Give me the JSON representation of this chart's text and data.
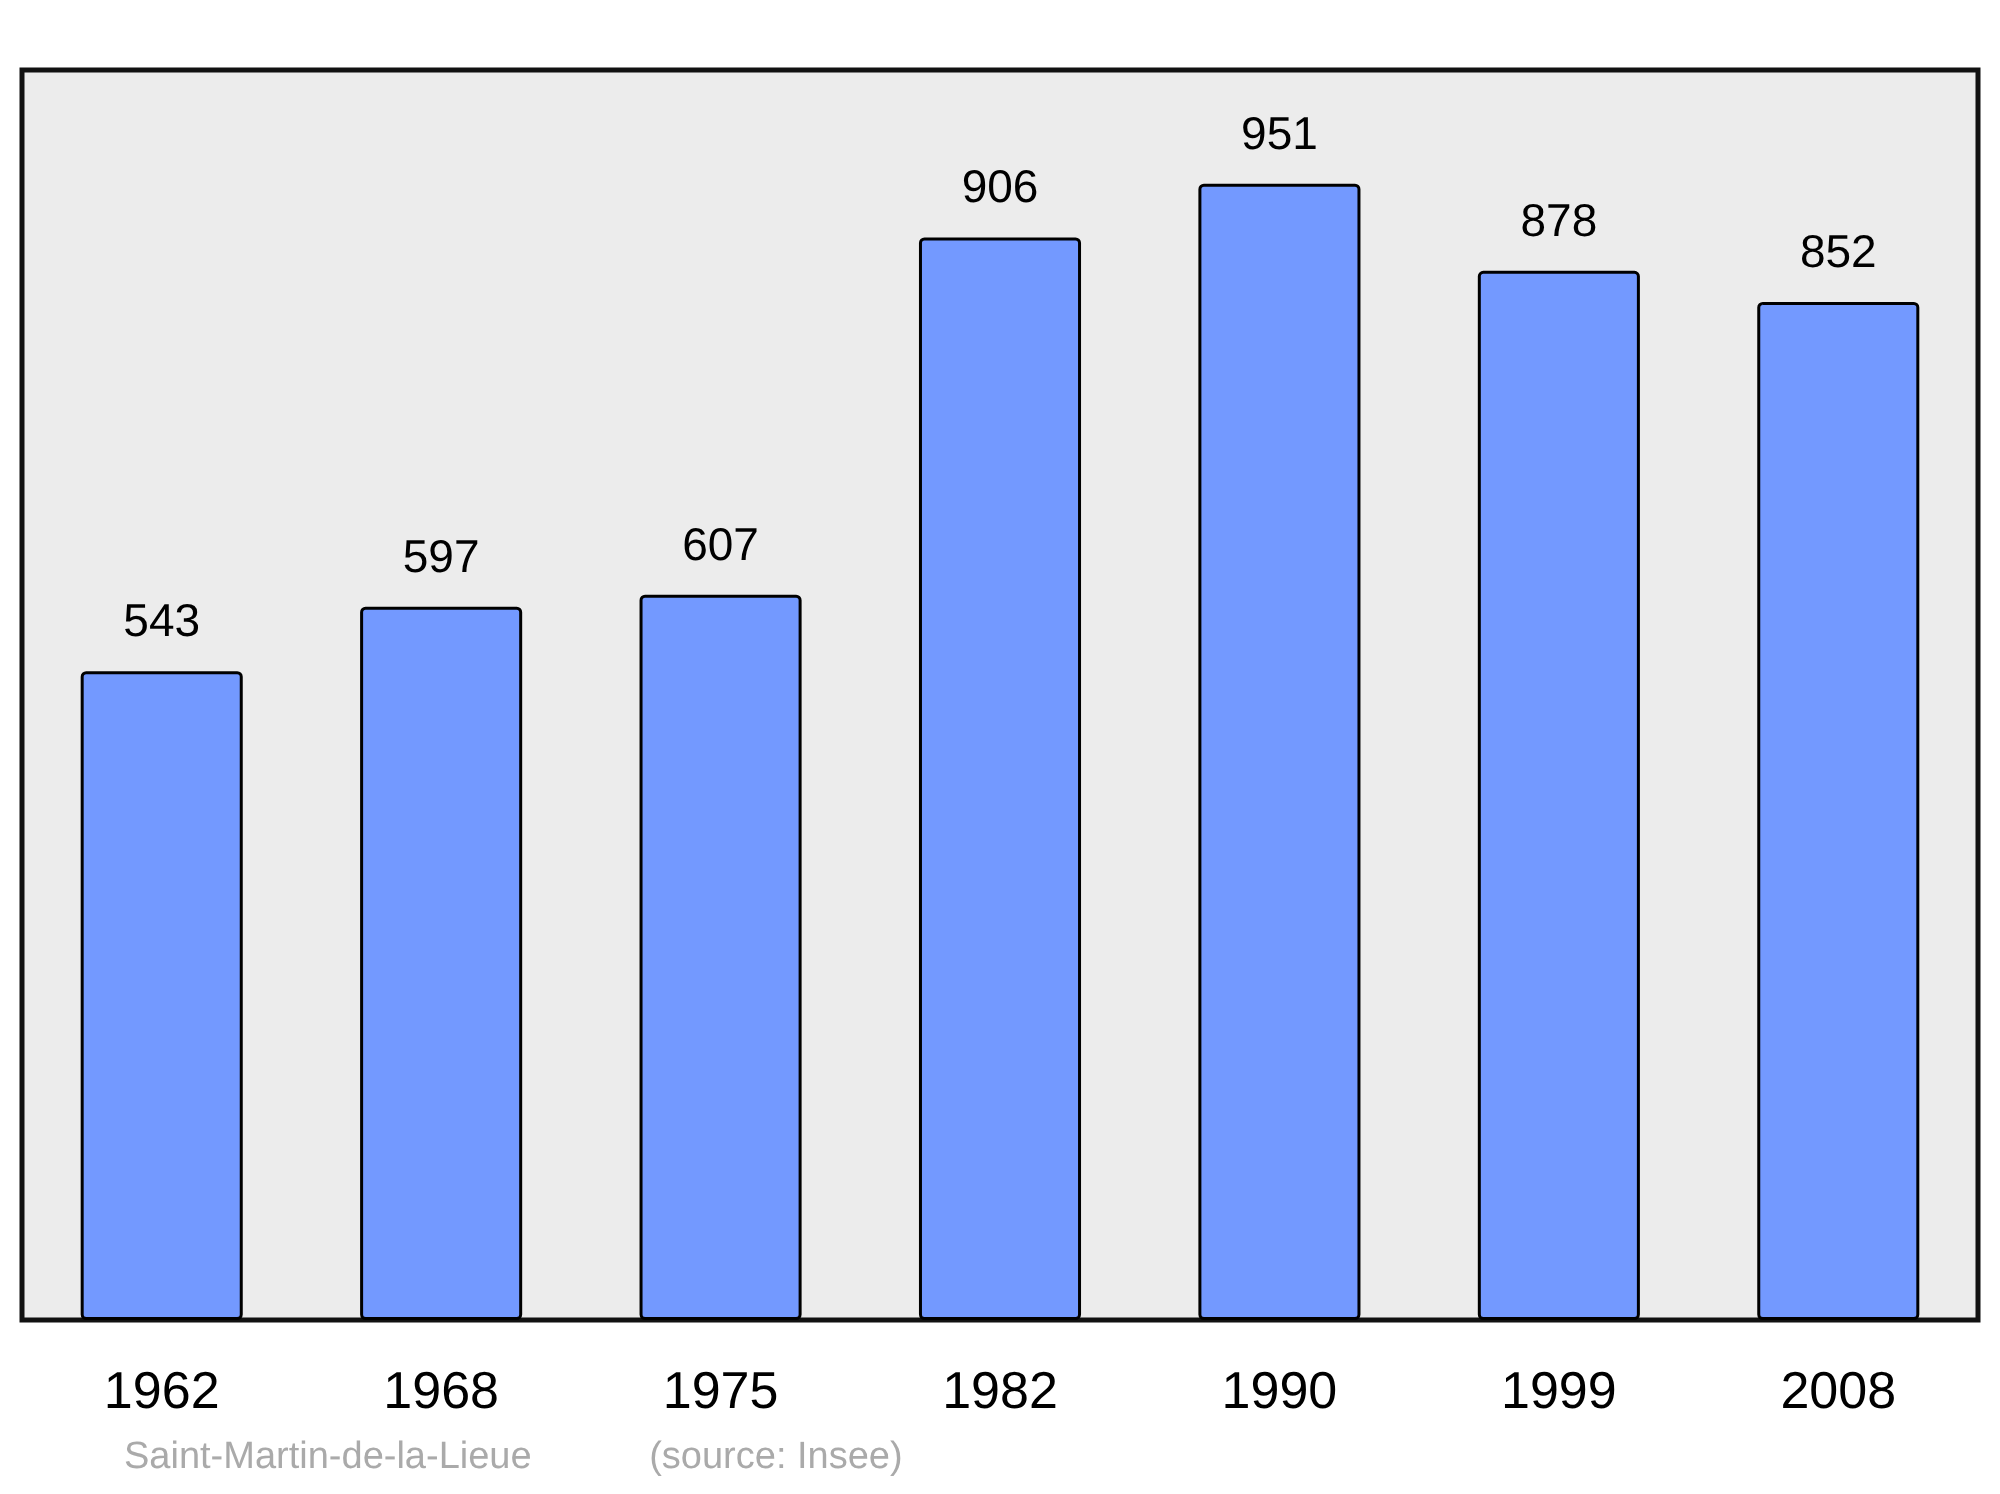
{
  "chart_data": {
    "type": "bar",
    "categories": [
      "1962",
      "1968",
      "1975",
      "1982",
      "1990",
      "1999",
      "2008"
    ],
    "values": [
      543,
      597,
      607,
      906,
      951,
      878,
      852
    ],
    "color": "#7399ff",
    "data_labels": true,
    "annotations": [
      "Saint-Martin-de-la-Lieue",
      "(source: Insee)"
    ]
  }
}
